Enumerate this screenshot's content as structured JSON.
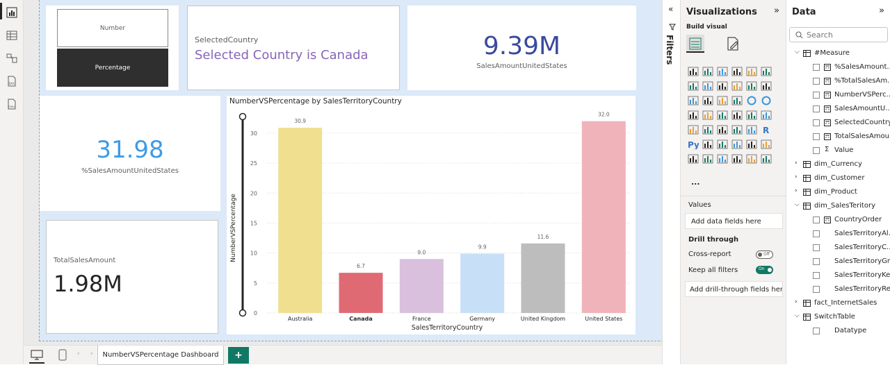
{
  "slicer": {
    "options": [
      "Number",
      "Percentage"
    ],
    "selected": "Percentage"
  },
  "selected_country": {
    "label": "SelectedCountry",
    "value": "Selected Country is Canada"
  },
  "kpi_us_sales": {
    "value": "9.39M",
    "label": "SalesAmountUnitedStates"
  },
  "kpi_us_pct": {
    "value": "31.98",
    "label": "%SalesAmountUnitedStates"
  },
  "kpi_total": {
    "label": "TotalSalesAmount",
    "value": "1.98M"
  },
  "chart_data": {
    "type": "bar",
    "title": "NumberVSPercentage by SalesTerritoryCountry",
    "xlabel": "SalesTerritoryCountry",
    "ylabel": "NumberVSPercentage",
    "categories": [
      "Australia",
      "Canada",
      "France",
      "Germany",
      "United Kingdom",
      "United States"
    ],
    "values": [
      30.9,
      6.7,
      9.0,
      9.9,
      11.6,
      32.0
    ],
    "value_labels": [
      "30.9",
      "6.7",
      "9.0",
      "9.9",
      "11.6",
      "32.0"
    ],
    "colors": [
      "#f0df8f",
      "#df6a74",
      "#d9c0dd",
      "#c7e0f7",
      "#bdbdbd",
      "#f1b3ba"
    ],
    "highlight_category": "Canada",
    "yticks": [
      "0",
      "5",
      "10",
      "15",
      "20",
      "25",
      "30"
    ],
    "ylim": [
      0,
      33
    ]
  },
  "bottom": {
    "tab_label": "NumberVSPercentage Dashboard",
    "add_label": "+"
  },
  "filters_label": "Filters",
  "viz_pane": {
    "title": "Visualizations",
    "build_visual": "Build visual",
    "more": "...",
    "values_label": "Values",
    "values_placeholder": "Add data fields here",
    "drill_through": "Drill through",
    "cross_report": "Cross-report",
    "cross_report_state": "Off",
    "keep_filters": "Keep all filters",
    "keep_filters_state": "On",
    "drill_placeholder": "Add drill-through fields here",
    "py_label": "Py",
    "r_label": "R"
  },
  "data_pane": {
    "title": "Data",
    "search_placeholder": "Search",
    "tree": [
      {
        "label": "#Measure",
        "level": 0,
        "type": "table",
        "expanded": true
      },
      {
        "label": "%SalesAmount...",
        "level": 1,
        "type": "measure"
      },
      {
        "label": "%TotalSalesAm...",
        "level": 1,
        "type": "measure"
      },
      {
        "label": "NumberVSPerc...",
        "level": 1,
        "type": "measure"
      },
      {
        "label": "SalesAmountU...",
        "level": 1,
        "type": "measure"
      },
      {
        "label": "SelectedCountry",
        "level": 1,
        "type": "measure"
      },
      {
        "label": "TotalSalesAmou...",
        "level": 1,
        "type": "measure"
      },
      {
        "label": "Value",
        "level": 1,
        "type": "sigma"
      },
      {
        "label": "dim_Currency",
        "level": 0,
        "type": "table",
        "expanded": false
      },
      {
        "label": "dim_Customer",
        "level": 0,
        "type": "table",
        "expanded": false
      },
      {
        "label": "dim_Product",
        "level": 0,
        "type": "table",
        "expanded": false
      },
      {
        "label": "dim_SalesTeritory",
        "level": 0,
        "type": "table",
        "expanded": true
      },
      {
        "label": "CountryOrder",
        "level": 1,
        "type": "measure"
      },
      {
        "label": "SalesTerritoryAl...",
        "level": 1,
        "type": "field"
      },
      {
        "label": "SalesTerritoryC...",
        "level": 1,
        "type": "field"
      },
      {
        "label": "SalesTerritoryGr...",
        "level": 1,
        "type": "field"
      },
      {
        "label": "SalesTerritoryKey",
        "level": 1,
        "type": "field"
      },
      {
        "label": "SalesTerritoryRe...",
        "level": 1,
        "type": "field"
      },
      {
        "label": "fact_InternetSales",
        "level": 0,
        "type": "table",
        "expanded": false
      },
      {
        "label": "SwitchTable",
        "level": 0,
        "type": "table",
        "expanded": true
      },
      {
        "label": "Datatype",
        "level": 1,
        "type": "field"
      }
    ]
  },
  "colors": {
    "accent_purple": "#8764b8",
    "kpi_navy": "#3a4a9f",
    "kpi_blue": "#3d9be9",
    "toggle_green": "#117865"
  }
}
